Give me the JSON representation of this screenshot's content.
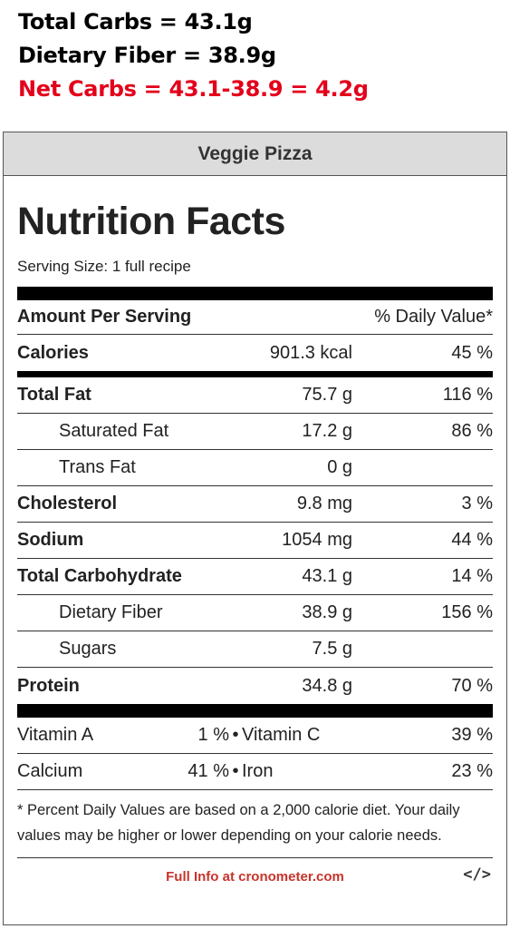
{
  "header": {
    "line1": "Total Carbs = 43.1g",
    "line2": "Dietary Fiber = 38.9g",
    "line3": "Net Carbs = 43.1-38.9 = 4.2g",
    "line3_color": "#e3001b"
  },
  "label": {
    "recipe_title": "Veggie Pizza",
    "title": "Nutrition Facts",
    "serving_size": "Serving Size: 1 full recipe",
    "amount_per_serving": "Amount Per Serving",
    "daily_value_header": "% Daily Value*",
    "calories": {
      "name": "Calories",
      "amount": "901.3 kcal",
      "dv": "45 %"
    },
    "nutrients": [
      {
        "name": "Total Fat",
        "amount": "75.7 g",
        "dv": "116 %"
      },
      {
        "name": "Saturated Fat",
        "amount": "17.2 g",
        "dv": "86 %"
      },
      {
        "name": "Trans Fat",
        "amount": "0 g",
        "dv": ""
      },
      {
        "name": "Cholesterol",
        "amount": "9.8 mg",
        "dv": "3 %"
      },
      {
        "name": "Sodium",
        "amount": "1054 mg",
        "dv": "44 %"
      },
      {
        "name": "Total Carbohydrate",
        "amount": "43.1 g",
        "dv": "14 %"
      },
      {
        "name": "Dietary Fiber",
        "amount": "38.9 g",
        "dv": "156 %"
      },
      {
        "name": "Sugars",
        "amount": "7.5 g",
        "dv": ""
      },
      {
        "name": "Protein",
        "amount": "34.8 g",
        "dv": "70 %"
      }
    ],
    "vitamins": [
      {
        "left_name": "Vitamin A",
        "left_dv": "1 %",
        "sep": "•",
        "right_name": "Vitamin C",
        "right_dv": "39 %"
      },
      {
        "left_name": "Calcium",
        "left_dv": "41 %",
        "sep": "•",
        "right_name": "Iron",
        "right_dv": "23 %"
      }
    ],
    "footnote": "* Percent Daily Values are based on a 2,000 calorie diet. Your daily values may be higher or lower depending on your calorie needs.",
    "full_info_link": "Full Info at cronometer.com",
    "embed_icon": "</>",
    "link_color": "#c8342c"
  }
}
